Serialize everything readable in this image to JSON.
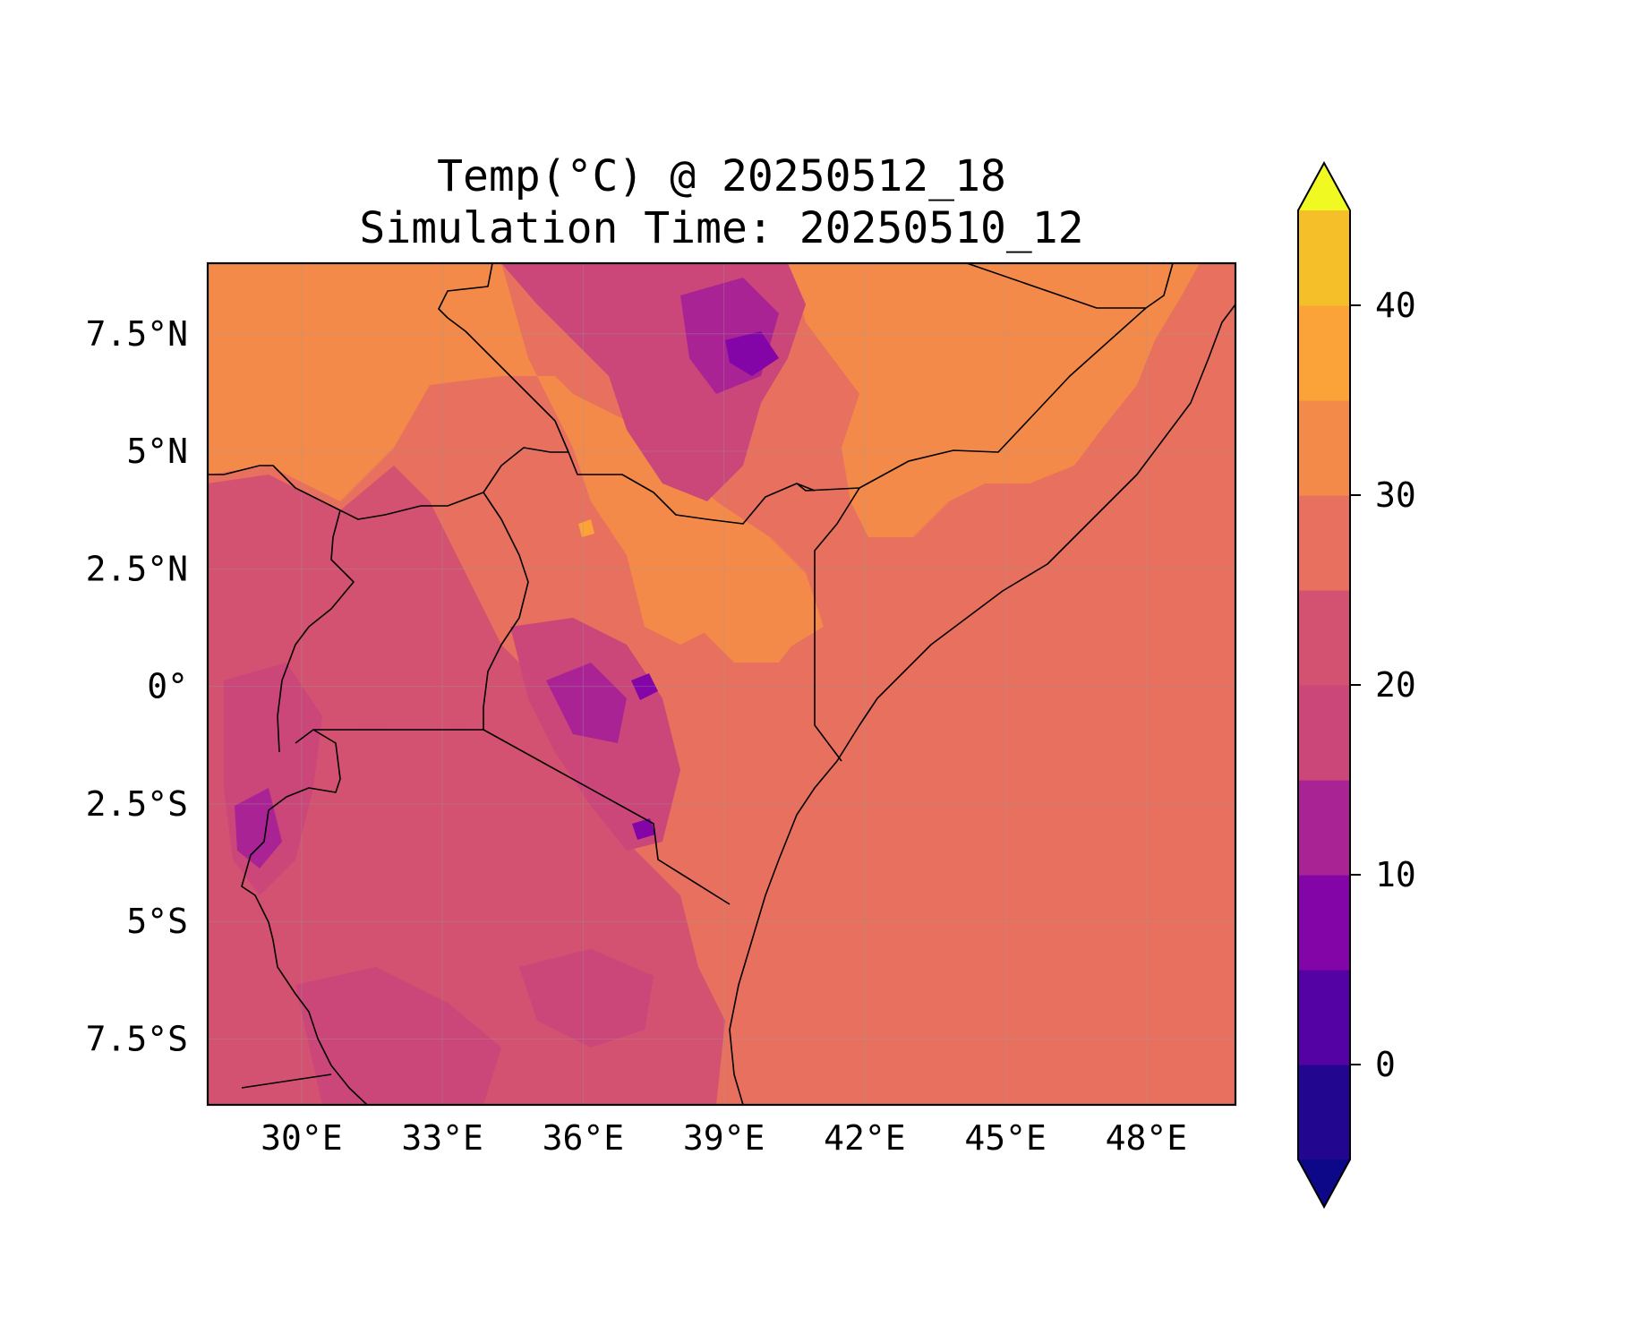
{
  "chart_data": {
    "type": "heatmap",
    "title": "Temp(°C) @ 20250512_18",
    "subtitle": "Simulation Time: 20250510_12",
    "xlabel": "",
    "ylabel": "",
    "x_ticks": [
      {
        "value": 30,
        "label": "30°E"
      },
      {
        "value": 33,
        "label": "33°E"
      },
      {
        "value": 36,
        "label": "36°E"
      },
      {
        "value": 39,
        "label": "39°E"
      },
      {
        "value": 42,
        "label": "42°E"
      },
      {
        "value": 45,
        "label": "45°E"
      },
      {
        "value": 48,
        "label": "48°E"
      }
    ],
    "y_ticks": [
      {
        "value": 7.5,
        "label": "7.5°N"
      },
      {
        "value": 5,
        "label": "5°N"
      },
      {
        "value": 2.5,
        "label": "2.5°N"
      },
      {
        "value": 0,
        "label": "0°"
      },
      {
        "value": -2.5,
        "label": "2.5°S"
      },
      {
        "value": -5,
        "label": "5°S"
      },
      {
        "value": -7.5,
        "label": "7.5°S"
      }
    ],
    "xlim": [
      28,
      49.9
    ],
    "ylim": [
      -8.9,
      9.0
    ],
    "grid": true,
    "colorbar": {
      "levels": [
        -5,
        0,
        5,
        10,
        15,
        20,
        25,
        30,
        35,
        40,
        45
      ],
      "colors": [
        "#23068f",
        "#5402a3",
        "#8305a7",
        "#aa2395",
        "#cb4679",
        "#d35171",
        "#e8705e",
        "#f48a4a",
        "#fba238",
        "#f5bf2a",
        "#eef527"
      ],
      "extend": "both",
      "tick_values": [
        0,
        10,
        20,
        30,
        40
      ],
      "tick_labels": [
        "0",
        "10",
        "20",
        "30",
        "40"
      ],
      "min_color": "#0d0887",
      "max_color": "#f0f921"
    },
    "fields": {
      "ocean_temp_band": "25-30",
      "northern_lowland_band": "30-35",
      "highland_band": "15-20",
      "coldest_highland_band": "5-10",
      "hottest_band": "35-40"
    }
  },
  "colors": {
    "ocean": "#e8705e",
    "hot_lowland": "#f48a4a",
    "warm": "#d35171",
    "cool": "#cb4679",
    "cold": "#aa2395",
    "coldest": "#8305a7",
    "hottest": "#fba238",
    "border": "#000000"
  }
}
